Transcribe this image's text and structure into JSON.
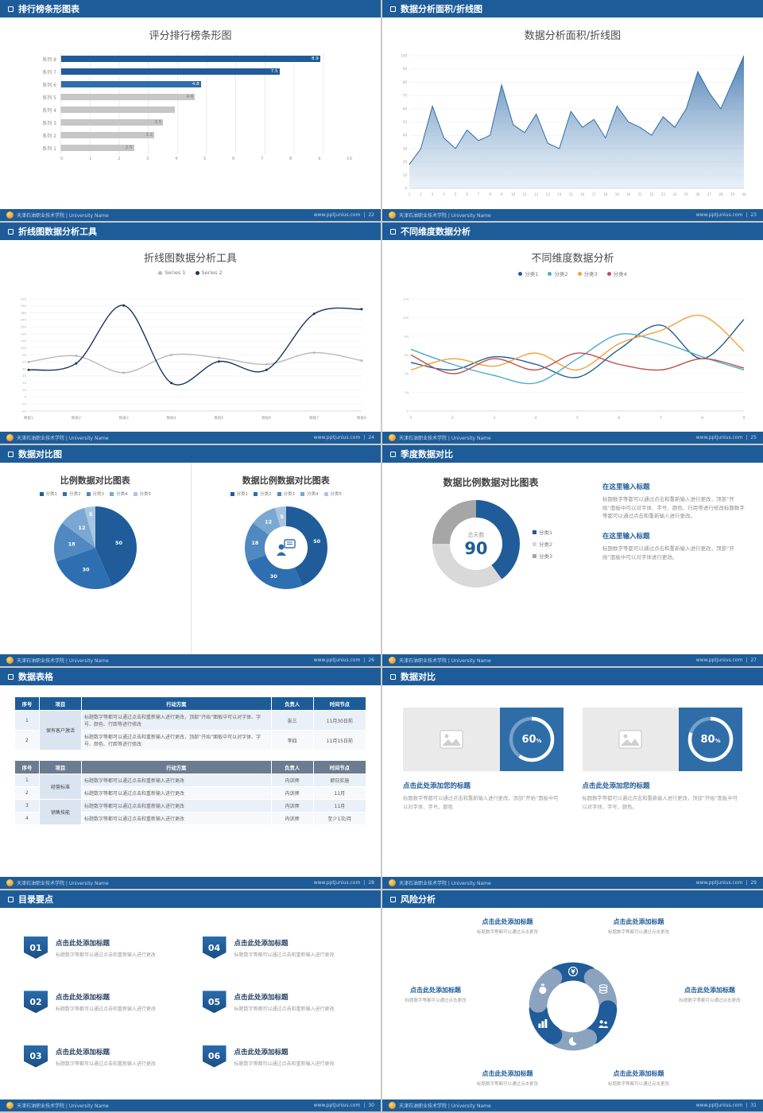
{
  "page": {
    "background": "#c9c9c9",
    "accent_blue": "#1e5c99",
    "footer_school": "天津石油职业技术学院 | University Name",
    "footer_site": "www.pptjunius.com",
    "footer_sep": "|"
  },
  "slides": [
    {
      "header": "排行榜条形图表",
      "page_no": "22",
      "title": "评分排行榜条形图"
    },
    {
      "header": "数据分析面积/折线图",
      "page_no": "23",
      "title": "数据分析面积/折线图"
    },
    {
      "header": "折线图数据分析工具",
      "page_no": "24",
      "title": "折线图数据分析工具"
    },
    {
      "header": "不同维度数据分析",
      "page_no": "25",
      "title": "不同维度数据分析"
    },
    {
      "header": "数据对比图",
      "page_no": "26",
      "left_title": "比例数据对比图表",
      "right_title": "数据比例数据对比图表"
    },
    {
      "header": "季度数据对比",
      "page_no": "27",
      "title": "数据比例数据对比图表",
      "sections": [
        {
          "heading": "在这里输入标题",
          "body": "标题数字等都可以通过点击和重新输入进行更改，顶部“开始”面板中可以对字体、字号、颜色、行距等进行修改标题数字等都可以通过点击和重新输入进行更改。"
        },
        {
          "heading": "在这里输入标题",
          "body": "标题数字等都可以通过点击和重新输入进行更改，顶部“开始”面板中可以对字体进行更改。"
        }
      ]
    },
    {
      "header": "数据表格",
      "page_no": "28",
      "tables": [
        {
          "header_bg": "#1e5c99",
          "columns": [
            "序号",
            "项目",
            "行动方案",
            "负责人",
            "时间节点"
          ],
          "rows": [
            [
              "1",
              "保有客户激活",
              "标题数字等都可以通过点击和重新输入进行更改，顶部“开始”面板中可以对字体、字号、颜色、行距等进行修改",
              "张三",
              "11月30日前"
            ],
            [
              "2",
              "",
              "标题数字等都可以通过点击和重新输入进行更改，顶部“开始”面板中可以对字体、字号、颜色、行距等进行修改",
              "李四",
              "11月15日前"
            ]
          ]
        },
        {
          "header_bg": "#6b7b90",
          "columns": [
            "序号",
            "项目",
            "行动方案",
            "负责人",
            "时间节点"
          ],
          "rows": [
            [
              "1",
              "经营标准",
              "标题数字等都可以通过点击和重新输入进行更改",
              "内训师",
              "即日实施"
            ],
            [
              "2",
              "",
              "标题数字等都可以通过点击和重新输入进行更改",
              "内训师",
              "11月"
            ],
            [
              "3",
              "销售技能",
              "标题数字等都可以通过点击和重新输入进行更改",
              "内训师",
              "11月"
            ],
            [
              "4",
              "",
              "标题数字等都可以通过点击和重新输入进行更改",
              "内训师",
              "至少1次/月"
            ]
          ]
        }
      ]
    },
    {
      "header": "数据对比",
      "page_no": "29",
      "cards": [
        {
          "percent": "60",
          "title": "点击此处添加您的标题",
          "body": "标题数字等都可以通过点击和重新输入进行更改，顶部“开始”面板中可以对字体、字号、颜色"
        },
        {
          "percent": "80",
          "title": "点击此处添加您的标题",
          "body": "标题数字等都可以通过点击和重新输入进行更改，顶部“开始”面板中可以对字体、字号、颜色。"
        }
      ]
    },
    {
      "header": "目录要点",
      "page_no": "30",
      "items": [
        {
          "num": "01",
          "title": "点击此处添加标题",
          "desc": "标题数字等都可以通过点击和重新输入进行更改"
        },
        {
          "num": "02",
          "title": "点击此处添加标题",
          "desc": "标题数字等都可以通过点击和重新输入进行更改"
        },
        {
          "num": "03",
          "title": "点击此处添加标题",
          "desc": "标题数字等都可以通过点击和重新输入进行更改"
        },
        {
          "num": "04",
          "title": "点击此处添加标题",
          "desc": "标题数字等都可以通过点击和重新输入进行更改"
        },
        {
          "num": "05",
          "title": "点击此处添加标题",
          "desc": "标题数字等都可以通过点击和重新输入进行更改"
        },
        {
          "num": "06",
          "title": "点击此处添加标题",
          "desc": "标题数字等都可以通过点击和重新输入进行更改"
        }
      ]
    },
    {
      "header": "风险分析",
      "page_no": "31",
      "labels": [
        {
          "title": "点击此处添加标题",
          "desc": "标题数字等都可以通过点击更改"
        },
        {
          "title": "点击此处添加标题",
          "desc": "标题数字等都可以通过点击更改"
        },
        {
          "title": "点击此处添加标题",
          "desc": "标题数字等都可以通过点击更改"
        },
        {
          "title": "点击此处添加标题",
          "desc": "标题数字等都可以通过点击更改"
        },
        {
          "title": "点击此处添加标题",
          "desc": "标题数字等都可以通过点击更改"
        },
        {
          "title": "点击此处添加标题",
          "desc": "标题数字等都可以通过点击更改"
        }
      ]
    }
  ],
  "chart_data": [
    {
      "id": "ranking-bar",
      "type": "bar",
      "title": "评分排行榜条形图",
      "xlim": [
        0,
        10
      ],
      "xticks": [
        0,
        1,
        2,
        3,
        4,
        5,
        6,
        7,
        8,
        9,
        10
      ],
      "bars": [
        {
          "category": "系列 8",
          "value": 8.9,
          "label": "8.9",
          "color": "#1f5c99",
          "label_color": "#ffffff"
        },
        {
          "category": "系列 7",
          "value": 7.5,
          "label": "7.5",
          "color": "#1f5c99",
          "label_color": "#ffffff"
        },
        {
          "category": "系列 6",
          "value": 4.8,
          "label": "4.8",
          "color": "#2e6dad",
          "label_color": "#ffffff"
        },
        {
          "category": "系列 5",
          "value": 4.6,
          "label": "4.6",
          "color": "#c6c6c6",
          "label_color": "#777777"
        },
        {
          "category": "系列 4",
          "value": 3.9,
          "label": "",
          "color": "#c6c6c6",
          "label_color": "#777777"
        },
        {
          "category": "系列 3",
          "value": 3.5,
          "label": "3.5",
          "color": "#c6c6c6",
          "label_color": "#777777"
        },
        {
          "category": "系列 2",
          "value": 3.2,
          "label": "3.2",
          "color": "#c6c6c6",
          "label_color": "#777777"
        },
        {
          "category": "系列 1",
          "value": 2.5,
          "label": "2.5",
          "color": "#c6c6c6",
          "label_color": "#777777"
        }
      ]
    },
    {
      "id": "area-chart",
      "type": "area",
      "title": "数据分析面积/折线图",
      "x": [
        1,
        2,
        3,
        4,
        5,
        6,
        7,
        8,
        9,
        10,
        11,
        12,
        13,
        14,
        15,
        16,
        17,
        18,
        19,
        20,
        21,
        22,
        23,
        24,
        25,
        26,
        27,
        28,
        29,
        30
      ],
      "values": [
        18,
        30,
        62,
        38,
        30,
        44,
        36,
        40,
        78,
        48,
        42,
        56,
        34,
        30,
        58,
        46,
        52,
        38,
        62,
        50,
        46,
        40,
        54,
        46,
        60,
        88,
        72,
        60,
        80,
        100
      ],
      "ylim": [
        0,
        100
      ],
      "ytick_step": 10,
      "line_color": "#2e6da8",
      "fill_top": "#4379af",
      "fill_bottom": "#d7e5f2"
    },
    {
      "id": "line-tools",
      "type": "line",
      "title": "折线图数据分析工具",
      "categories": [
        "数据1",
        "数据2",
        "数据3",
        "数据4",
        "数据5",
        "数据6",
        "数据7",
        "数据8"
      ],
      "ylim": [
        -30,
        210
      ],
      "ytick_step": 15,
      "markers": true,
      "legend_marker": "dot",
      "series": [
        {
          "name": "Series 1",
          "color": "#b9b9b9",
          "values": [
            75,
            88,
            52,
            90,
            84,
            70,
            95,
            78
          ]
        },
        {
          "name": "Series 2",
          "color": "#17375e",
          "values": [
            58,
            72,
            196,
            30,
            76,
            58,
            178,
            188
          ]
        }
      ]
    },
    {
      "id": "line-dims",
      "type": "line",
      "title": "不同维度数据分析",
      "x": [
        1,
        2,
        3,
        4,
        5,
        6,
        7,
        8,
        9
      ],
      "ylim": [
        0,
        120
      ],
      "ytick_step": 20,
      "markers": false,
      "legend_marker": "dot",
      "series": [
        {
          "name": "分类1",
          "color": "#1f5c99",
          "values": [
            52,
            44,
            58,
            50,
            36,
            66,
            92,
            56,
            98
          ]
        },
        {
          "name": "分类2",
          "color": "#4bacc6",
          "values": [
            66,
            50,
            38,
            30,
            56,
            82,
            74,
            58,
            44
          ]
        },
        {
          "name": "分类3",
          "color": "#f2a13a",
          "values": [
            44,
            56,
            48,
            62,
            44,
            72,
            86,
            102,
            64
          ]
        },
        {
          "name": "分类4",
          "color": "#c0504d",
          "values": [
            60,
            40,
            56,
            44,
            62,
            50,
            44,
            56,
            46
          ]
        }
      ]
    },
    {
      "id": "pie-left",
      "type": "pie",
      "title": "比例数据对比图表",
      "legend": [
        "分类1",
        "分类2",
        "分类3",
        "分类4",
        "分类5"
      ],
      "legend_marker": "square",
      "values": [
        50,
        30,
        18,
        12,
        5
      ],
      "labels": [
        "50",
        "30",
        "18",
        "12",
        "5"
      ],
      "colors": [
        "#1f5c99",
        "#2e6fb2",
        "#5088c1",
        "#7ba8d2",
        "#a9c6e0"
      ]
    },
    {
      "id": "donut-right",
      "type": "pie",
      "inner": 0.52,
      "title": "数据比例数据对比图表",
      "legend": [
        "分类1",
        "分类2",
        "分类3",
        "分类4",
        "分类5"
      ],
      "legend_marker": "square",
      "values": [
        50,
        30,
        18,
        12,
        5
      ],
      "labels": [
        "50",
        "30",
        "18",
        "12",
        "5"
      ],
      "colors": [
        "#1f5c99",
        "#2e6fb2",
        "#5088c1",
        "#7ba8d2",
        "#a9c6e0"
      ],
      "center_icon": "presenter-icon"
    },
    {
      "id": "donut-days",
      "type": "pie",
      "inner": 0.6,
      "values": [
        40,
        35,
        25
      ],
      "labels": [
        "",
        "",
        ""
      ],
      "colors": [
        "#1f5c99",
        "#d9d9d9",
        "#a6a6a6"
      ],
      "legend": [
        "分类1",
        "分类2",
        "分类3"
      ],
      "legend_marker": "square",
      "center": {
        "label": "总天数",
        "value": "90"
      }
    },
    {
      "id": "progress-60",
      "type": "progress",
      "percent": 60,
      "ring_bg": "#2e6da8"
    },
    {
      "id": "progress-80",
      "type": "progress",
      "percent": 80,
      "ring_bg": "#2e6da8"
    },
    {
      "id": "risk-wheel",
      "type": "wheel",
      "colors": [
        "#1f5c99",
        "#8ba3bf"
      ],
      "icons": [
        "yen-coin-icon",
        "coins-icon",
        "people-icon",
        "pie-chart-icon",
        "bar-chart-icon",
        "money-bag-icon"
      ]
    }
  ]
}
